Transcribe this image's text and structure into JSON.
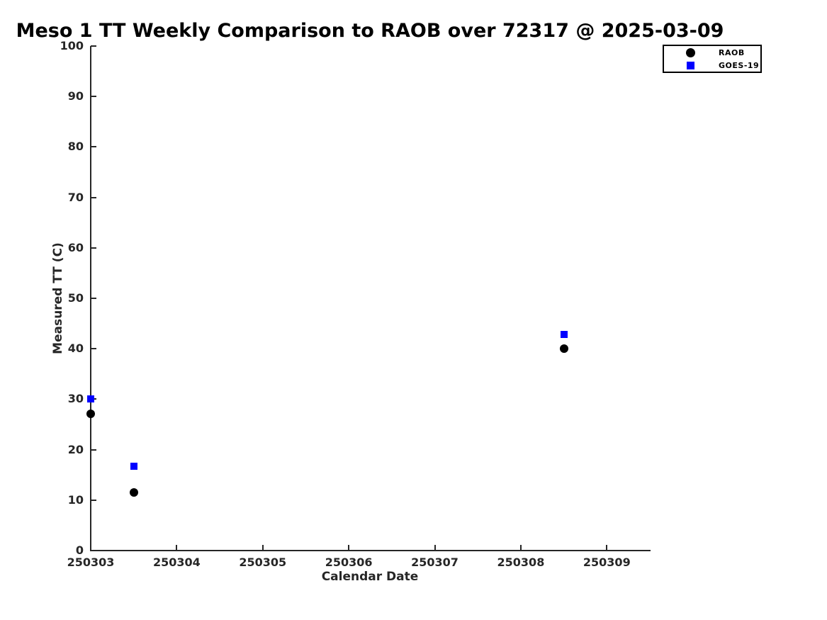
{
  "figure": {
    "title": "Meso 1 TT Weekly Comparison to RAOB over 72317 @ 2025-03-09"
  },
  "chart_data": {
    "type": "scatter",
    "title": "Meso 1 TT Weekly Comparison to RAOB over 72317 @ 2025-03-09",
    "xlabel": "Calendar Date",
    "ylabel": "Measured TT (C)",
    "xlim": [
      250303,
      250309.5
    ],
    "ylim": [
      0,
      100
    ],
    "x_ticks": [
      250303,
      250304,
      250305,
      250306,
      250307,
      250308,
      250309
    ],
    "x_tick_labels": [
      "250303",
      "250304",
      "250305",
      "250306",
      "250307",
      "250308",
      "250309"
    ],
    "y_ticks": [
      0,
      10,
      20,
      30,
      40,
      50,
      60,
      70,
      80,
      90,
      100
    ],
    "y_tick_labels": [
      "0",
      "10",
      "20",
      "30",
      "40",
      "50",
      "60",
      "70",
      "80",
      "90",
      "100"
    ],
    "grid": false,
    "legend": {
      "position": "top-right",
      "entries": [
        {
          "label": "RAOB",
          "marker": "circle",
          "color": "#000000"
        },
        {
          "label": "GOES-19",
          "marker": "square",
          "color": "#0000ff"
        }
      ]
    },
    "series": [
      {
        "name": "RAOB",
        "marker": "circle",
        "color": "#000000",
        "points": [
          {
            "x": 250303.0,
            "y": 27.1
          },
          {
            "x": 250303.5,
            "y": 11.5
          },
          {
            "x": 250308.5,
            "y": 40.0
          }
        ]
      },
      {
        "name": "GOES-19",
        "marker": "square",
        "color": "#0000ff",
        "points": [
          {
            "x": 250303.0,
            "y": 30.0
          },
          {
            "x": 250303.5,
            "y": 16.7
          },
          {
            "x": 250308.5,
            "y": 42.8
          }
        ]
      }
    ]
  }
}
